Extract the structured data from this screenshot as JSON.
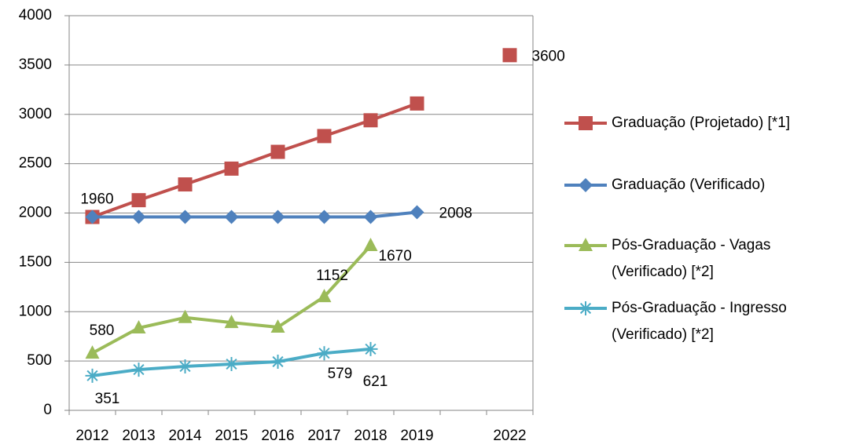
{
  "chart_data": {
    "type": "line",
    "categories": [
      "2012",
      "2013",
      "2014",
      "2015",
      "2016",
      "2017",
      "2018",
      "2019",
      null,
      "2022"
    ],
    "ylim": [
      0,
      4000
    ],
    "yticks": [
      0,
      500,
      1000,
      1500,
      2000,
      2500,
      3000,
      3500,
      4000
    ],
    "grid": true,
    "legend": "right",
    "series": [
      {
        "name": "Graduação (Projetado) [*1]",
        "color": "#c0504d",
        "marker": "square",
        "values": [
          1960,
          2130,
          2290,
          2450,
          2620,
          2780,
          2940,
          3110,
          null,
          3600
        ],
        "value_labels": [
          null,
          null,
          null,
          null,
          null,
          null,
          null,
          null,
          null,
          "3600"
        ]
      },
      {
        "name": "Graduação (Verificado)",
        "color": "#4f81bd",
        "marker": "diamond",
        "values": [
          1960,
          1960,
          1960,
          1960,
          1960,
          1960,
          1960,
          2008,
          null,
          null
        ],
        "value_labels": [
          "1960",
          null,
          null,
          null,
          null,
          null,
          null,
          "2008",
          null,
          null
        ]
      },
      {
        "name": "Pós-Graduação - Vagas (Verificado) [*2]",
        "color": "#9bbb59",
        "marker": "triangle",
        "values": [
          580,
          835,
          940,
          890,
          843,
          1152,
          1670,
          null,
          null,
          null
        ],
        "value_labels": [
          "580",
          null,
          null,
          null,
          null,
          "1152",
          "1670",
          null,
          null,
          null
        ]
      },
      {
        "name": "Pós-Graduação - Ingresso (Verificado) [*2]",
        "color": "#4bacc6",
        "marker": "star",
        "values": [
          351,
          413,
          445,
          469,
          493,
          579,
          621,
          null,
          null,
          null
        ],
        "value_labels": [
          "351",
          null,
          null,
          null,
          null,
          "579",
          "621",
          null,
          null,
          null
        ]
      }
    ]
  }
}
